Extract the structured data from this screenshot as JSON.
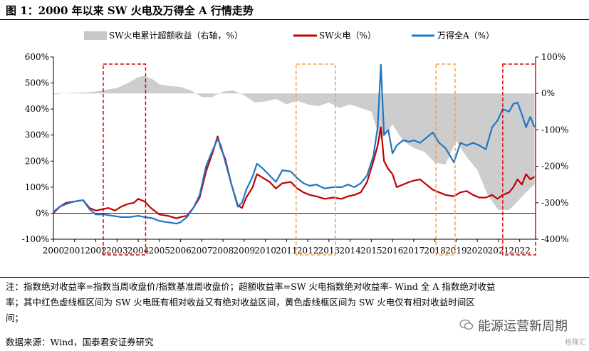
{
  "figure_title": "图 1：2000 年以来 SW 火电及万得全 A 行情走势",
  "notes": {
    "line1": "注：指数绝对收益率=指数当周收盘价/指数基准周收盘价；超额收益率=SW 火电指数绝对收益率- Wind 全 A 指数绝对收益",
    "line2": "率；其中红色虚线框区间为 SW 火电既有相对收益又有绝对收益区间，黄色虚线框区间为 SW 火电仅有相对收益时间区",
    "line3": "间；",
    "source": "数据来源：Wind，国泰君安证券研究"
  },
  "brand": {
    "label": "能源运营新周期",
    "icon": "wechat-icon",
    "corner": "格隆汇"
  },
  "colors": {
    "power": "#c00000",
    "windA": "#1f77c4",
    "excess": "#c8c8c8",
    "red_box": "#e00000",
    "yellow_box": "#f5a050"
  },
  "chart_data": {
    "type": "line",
    "x_range": [
      2000,
      2022.75
    ],
    "x_ticks": [
      "2000",
      "2001",
      "2002",
      "2003",
      "2004",
      "2005",
      "2006",
      "2007",
      "2008",
      "2009",
      "2010",
      "2011",
      "2012",
      "2013",
      "2014",
      "2015",
      "2016",
      "2017",
      "2018",
      "2019",
      "2020",
      "2021",
      "2022"
    ],
    "y_left": {
      "range": [
        -100,
        600
      ],
      "unit": "%",
      "ticks": [
        "-100%",
        "0%",
        "100%",
        "200%",
        "300%",
        "400%",
        "500%",
        "600%"
      ]
    },
    "y_right": {
      "range": [
        -400,
        100
      ],
      "unit": "%",
      "ticks": [
        "-400%",
        "-300%",
        "-200%",
        "-100%",
        "0%",
        "100%"
      ]
    },
    "legend": {
      "position": "top",
      "labels": [
        "SW火电累计超额收益（右轴，%）",
        "SW火电（%）",
        "万得全A（%）"
      ]
    },
    "series": [
      {
        "name": "SW火电（%）",
        "axis": "left",
        "points": [
          [
            2000,
            0
          ],
          [
            2000.3,
            25
          ],
          [
            2000.6,
            40
          ],
          [
            2001,
            45
          ],
          [
            2001.4,
            50
          ],
          [
            2001.7,
            20
          ],
          [
            2002,
            10
          ],
          [
            2002.3,
            15
          ],
          [
            2002.6,
            20
          ],
          [
            2002.9,
            10
          ],
          [
            2003.2,
            25
          ],
          [
            2003.5,
            35
          ],
          [
            2003.8,
            40
          ],
          [
            2004,
            55
          ],
          [
            2004.3,
            45
          ],
          [
            2004.6,
            20
          ],
          [
            2005,
            -5
          ],
          [
            2005.4,
            -10
          ],
          [
            2005.8,
            -20
          ],
          [
            2006,
            -15
          ],
          [
            2006.3,
            -10
          ],
          [
            2006.6,
            20
          ],
          [
            2006.9,
            60
          ],
          [
            2007.2,
            160
          ],
          [
            2007.5,
            230
          ],
          [
            2007.75,
            295
          ],
          [
            2007.9,
            250
          ],
          [
            2008.1,
            210
          ],
          [
            2008.4,
            110
          ],
          [
            2008.7,
            30
          ],
          [
            2008.9,
            20
          ],
          [
            2009.1,
            60
          ],
          [
            2009.4,
            100
          ],
          [
            2009.6,
            150
          ],
          [
            2009.9,
            135
          ],
          [
            2010.2,
            120
          ],
          [
            2010.5,
            95
          ],
          [
            2010.8,
            115
          ],
          [
            2011.2,
            120
          ],
          [
            2011.5,
            95
          ],
          [
            2011.8,
            80
          ],
          [
            2012.1,
            70
          ],
          [
            2012.4,
            65
          ],
          [
            2012.8,
            55
          ],
          [
            2013.2,
            60
          ],
          [
            2013.6,
            55
          ],
          [
            2013.9,
            65
          ],
          [
            2014.2,
            70
          ],
          [
            2014.5,
            80
          ],
          [
            2014.8,
            120
          ],
          [
            2015.1,
            200
          ],
          [
            2015.3,
            260
          ],
          [
            2015.45,
            330
          ],
          [
            2015.6,
            200
          ],
          [
            2015.8,
            170
          ],
          [
            2016,
            150
          ],
          [
            2016.2,
            100
          ],
          [
            2016.5,
            110
          ],
          [
            2016.8,
            120
          ],
          [
            2017,
            125
          ],
          [
            2017.3,
            130
          ],
          [
            2017.6,
            110
          ],
          [
            2017.9,
            90
          ],
          [
            2018.2,
            80
          ],
          [
            2018.5,
            70
          ],
          [
            2018.9,
            65
          ],
          [
            2019.2,
            80
          ],
          [
            2019.5,
            85
          ],
          [
            2019.8,
            70
          ],
          [
            2020.1,
            60
          ],
          [
            2020.4,
            60
          ],
          [
            2020.7,
            70
          ],
          [
            2020.95,
            55
          ],
          [
            2021.2,
            70
          ],
          [
            2021.5,
            80
          ],
          [
            2021.7,
            100
          ],
          [
            2021.9,
            130
          ],
          [
            2022.1,
            110
          ],
          [
            2022.3,
            150
          ],
          [
            2022.5,
            130
          ],
          [
            2022.7,
            140
          ]
        ]
      },
      {
        "name": "万得全A（%）",
        "axis": "left",
        "points": [
          [
            2000,
            5
          ],
          [
            2000.3,
            25
          ],
          [
            2000.6,
            35
          ],
          [
            2001,
            45
          ],
          [
            2001.4,
            50
          ],
          [
            2001.7,
            15
          ],
          [
            2002,
            -5
          ],
          [
            2002.4,
            -5
          ],
          [
            2002.8,
            -10
          ],
          [
            2003.2,
            -15
          ],
          [
            2003.6,
            -15
          ],
          [
            2004,
            -10
          ],
          [
            2004.3,
            -15
          ],
          [
            2004.7,
            -20
          ],
          [
            2005,
            -30
          ],
          [
            2005.4,
            -35
          ],
          [
            2005.8,
            -40
          ],
          [
            2006,
            -35
          ],
          [
            2006.3,
            -15
          ],
          [
            2006.6,
            20
          ],
          [
            2006.9,
            70
          ],
          [
            2007.2,
            180
          ],
          [
            2007.5,
            240
          ],
          [
            2007.75,
            285
          ],
          [
            2007.9,
            260
          ],
          [
            2008.1,
            200
          ],
          [
            2008.4,
            110
          ],
          [
            2008.7,
            25
          ],
          [
            2008.9,
            40
          ],
          [
            2009.1,
            90
          ],
          [
            2009.4,
            140
          ],
          [
            2009.6,
            190
          ],
          [
            2009.9,
            170
          ],
          [
            2010.2,
            145
          ],
          [
            2010.5,
            120
          ],
          [
            2010.8,
            165
          ],
          [
            2011.2,
            160
          ],
          [
            2011.5,
            135
          ],
          [
            2011.8,
            115
          ],
          [
            2012.1,
            105
          ],
          [
            2012.4,
            110
          ],
          [
            2012.8,
            95
          ],
          [
            2013.2,
            100
          ],
          [
            2013.6,
            100
          ],
          [
            2013.9,
            110
          ],
          [
            2014.2,
            100
          ],
          [
            2014.5,
            115
          ],
          [
            2014.8,
            145
          ],
          [
            2015.1,
            220
          ],
          [
            2015.3,
            330
          ],
          [
            2015.45,
            570
          ],
          [
            2015.6,
            300
          ],
          [
            2015.8,
            320
          ],
          [
            2016,
            230
          ],
          [
            2016.2,
            260
          ],
          [
            2016.5,
            280
          ],
          [
            2016.8,
            275
          ],
          [
            2017,
            280
          ],
          [
            2017.3,
            270
          ],
          [
            2017.6,
            290
          ],
          [
            2017.9,
            310
          ],
          [
            2018.2,
            270
          ],
          [
            2018.5,
            250
          ],
          [
            2018.9,
            195
          ],
          [
            2019.2,
            270
          ],
          [
            2019.5,
            260
          ],
          [
            2019.8,
            270
          ],
          [
            2020.1,
            260
          ],
          [
            2020.4,
            245
          ],
          [
            2020.7,
            330
          ],
          [
            2020.95,
            355
          ],
          [
            2021.2,
            400
          ],
          [
            2021.5,
            390
          ],
          [
            2021.7,
            420
          ],
          [
            2021.9,
            425
          ],
          [
            2022.1,
            380
          ],
          [
            2022.3,
            330
          ],
          [
            2022.5,
            370
          ],
          [
            2022.7,
            330
          ]
        ]
      },
      {
        "name": "SW火电累计超额收益（右轴，%）",
        "axis": "right",
        "points": [
          [
            2000,
            -3
          ],
          [
            2000.5,
            0
          ],
          [
            2001,
            2
          ],
          [
            2001.5,
            3
          ],
          [
            2002,
            5
          ],
          [
            2002.5,
            10
          ],
          [
            2003,
            15
          ],
          [
            2003.5,
            28
          ],
          [
            2004,
            45
          ],
          [
            2004.3,
            48
          ],
          [
            2004.7,
            38
          ],
          [
            2005,
            25
          ],
          [
            2005.5,
            20
          ],
          [
            2006,
            18
          ],
          [
            2006.5,
            8
          ],
          [
            2007,
            -10
          ],
          [
            2007.5,
            -10
          ],
          [
            2008,
            5
          ],
          [
            2008.5,
            8
          ],
          [
            2009,
            -5
          ],
          [
            2009.5,
            -25
          ],
          [
            2010,
            -22
          ],
          [
            2010.5,
            -15
          ],
          [
            2011,
            -30
          ],
          [
            2011.5,
            -20
          ],
          [
            2012,
            -30
          ],
          [
            2012.5,
            -35
          ],
          [
            2013,
            -25
          ],
          [
            2013.5,
            -40
          ],
          [
            2014,
            -30
          ],
          [
            2014.5,
            -40
          ],
          [
            2015,
            -50
          ],
          [
            2015.4,
            -125
          ],
          [
            2015.7,
            -110
          ],
          [
            2016,
            -85
          ],
          [
            2016.5,
            -130
          ],
          [
            2017,
            -150
          ],
          [
            2017.5,
            -160
          ],
          [
            2018,
            -190
          ],
          [
            2018.5,
            -195
          ],
          [
            2019,
            -130
          ],
          [
            2019.5,
            -175
          ],
          [
            2020,
            -210
          ],
          [
            2020.5,
            -280
          ],
          [
            2021,
            -320
          ],
          [
            2021.5,
            -320
          ],
          [
            2022,
            -290
          ],
          [
            2022.5,
            -260
          ],
          [
            2022.7,
            -250
          ]
        ]
      }
    ],
    "highlight_periods": [
      {
        "color": "red",
        "x": [
          2002.35,
          2004.35
        ]
      },
      {
        "color": "red",
        "x": [
          2021.2,
          2022.75
        ]
      },
      {
        "color": "yellow",
        "x": [
          2011.45,
          2013.3
        ]
      },
      {
        "color": "yellow",
        "x": [
          2018.05,
          2018.95
        ]
      }
    ]
  }
}
